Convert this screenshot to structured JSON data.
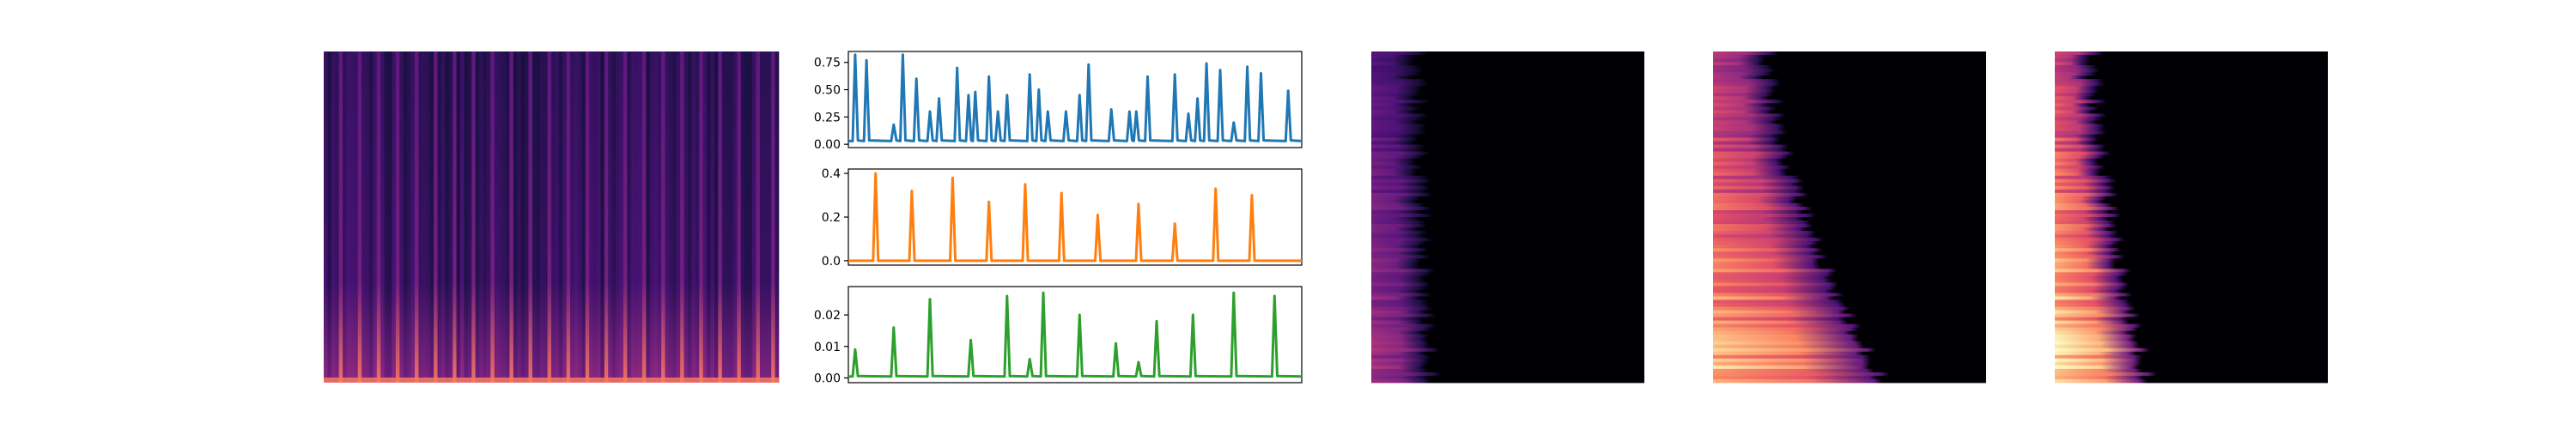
{
  "figure": {
    "colors": {
      "spectrogram_bg": "#1a0a2e",
      "spectrogram_stripe": "#8a3a9a",
      "spectrogram_low": "#f2a24b",
      "panel_black": "#000004",
      "series1": "#1f77b4",
      "series2": "#ff7f0e",
      "series3": "#2ca02c"
    }
  },
  "chart_data": [
    {
      "type": "heatmap",
      "name": "main-spectrogram",
      "colormap": "magma",
      "time_frames": 120,
      "stripe_columns": [
        4,
        9,
        14,
        19,
        24,
        29,
        34,
        39,
        44,
        49,
        54,
        59,
        64,
        69,
        74,
        79,
        84,
        89,
        94,
        99,
        104,
        109,
        114,
        118
      ],
      "axes": false
    },
    {
      "type": "line",
      "name": "onset-strength-1",
      "color": "#1f77b4",
      "x_range": [
        0,
        100
      ],
      "ylim": [
        -0.03,
        0.85
      ],
      "yticks": [
        "0.00",
        "0.25",
        "0.50",
        "0.75"
      ],
      "ytick_values": [
        0.0,
        0.25,
        0.5,
        0.75
      ],
      "baseline": 0.03,
      "peaks": [
        {
          "x": 1.5,
          "y": 0.82
        },
        {
          "x": 4,
          "y": 0.77
        },
        {
          "x": 10,
          "y": 0.18
        },
        {
          "x": 12,
          "y": 0.82
        },
        {
          "x": 15,
          "y": 0.6
        },
        {
          "x": 18,
          "y": 0.3
        },
        {
          "x": 20,
          "y": 0.42
        },
        {
          "x": 24,
          "y": 0.7
        },
        {
          "x": 26.5,
          "y": 0.45
        },
        {
          "x": 28,
          "y": 0.48
        },
        {
          "x": 31,
          "y": 0.62
        },
        {
          "x": 33,
          "y": 0.3
        },
        {
          "x": 35,
          "y": 0.45
        },
        {
          "x": 40,
          "y": 0.64
        },
        {
          "x": 42,
          "y": 0.5
        },
        {
          "x": 44,
          "y": 0.3
        },
        {
          "x": 48,
          "y": 0.3
        },
        {
          "x": 51,
          "y": 0.45
        },
        {
          "x": 53,
          "y": 0.73
        },
        {
          "x": 58,
          "y": 0.32
        },
        {
          "x": 62,
          "y": 0.3
        },
        {
          "x": 63.5,
          "y": 0.3
        },
        {
          "x": 66,
          "y": 0.62
        },
        {
          "x": 72,
          "y": 0.64
        },
        {
          "x": 75,
          "y": 0.28
        },
        {
          "x": 77,
          "y": 0.42
        },
        {
          "x": 79,
          "y": 0.74
        },
        {
          "x": 82,
          "y": 0.68
        },
        {
          "x": 85,
          "y": 0.2
        },
        {
          "x": 88,
          "y": 0.71
        },
        {
          "x": 91,
          "y": 0.65
        },
        {
          "x": 97,
          "y": 0.49
        }
      ]
    },
    {
      "type": "line",
      "name": "onset-strength-2",
      "color": "#ff7f0e",
      "x_range": [
        0,
        100
      ],
      "ylim": [
        -0.02,
        0.42
      ],
      "yticks": [
        "0.0",
        "0.2",
        "0.4"
      ],
      "ytick_values": [
        0.0,
        0.2,
        0.4
      ],
      "baseline": 0.0,
      "peaks": [
        {
          "x": 6,
          "y": 0.4
        },
        {
          "x": 14,
          "y": 0.32
        },
        {
          "x": 23,
          "y": 0.38
        },
        {
          "x": 31,
          "y": 0.27
        },
        {
          "x": 39,
          "y": 0.35
        },
        {
          "x": 47,
          "y": 0.31
        },
        {
          "x": 55,
          "y": 0.21
        },
        {
          "x": 64,
          "y": 0.26
        },
        {
          "x": 72,
          "y": 0.17
        },
        {
          "x": 81,
          "y": 0.33
        },
        {
          "x": 89,
          "y": 0.3
        }
      ]
    },
    {
      "type": "line",
      "name": "onset-strength-3",
      "color": "#2ca02c",
      "x_range": [
        0,
        100
      ],
      "ylim": [
        -0.0015,
        0.029
      ],
      "yticks": [
        "0.00",
        "0.01",
        "0.02"
      ],
      "ytick_values": [
        0.0,
        0.01,
        0.02
      ],
      "baseline": 0.0005,
      "peaks": [
        {
          "x": 1.5,
          "y": 0.009
        },
        {
          "x": 10,
          "y": 0.016
        },
        {
          "x": 18,
          "y": 0.025
        },
        {
          "x": 27,
          "y": 0.012
        },
        {
          "x": 35,
          "y": 0.026
        },
        {
          "x": 40,
          "y": 0.006
        },
        {
          "x": 43,
          "y": 0.027
        },
        {
          "x": 51,
          "y": 0.02
        },
        {
          "x": 59,
          "y": 0.011
        },
        {
          "x": 64,
          "y": 0.005
        },
        {
          "x": 68,
          "y": 0.018
        },
        {
          "x": 76,
          "y": 0.02
        },
        {
          "x": 85,
          "y": 0.027
        },
        {
          "x": 94,
          "y": 0.026
        }
      ]
    },
    {
      "type": "heatmap",
      "name": "profile-heatmap-1",
      "colormap": "magma",
      "rows": 96,
      "max_intensity": 0.45,
      "edge_start": 0.15,
      "edge_growth": 0.05,
      "axes": false
    },
    {
      "type": "heatmap",
      "name": "profile-heatmap-2",
      "colormap": "magma",
      "rows": 96,
      "max_intensity": 0.85,
      "edge_start": 0.18,
      "edge_growth": 0.42,
      "axes": false
    },
    {
      "type": "heatmap",
      "name": "profile-heatmap-3",
      "colormap": "magma",
      "rows": 96,
      "max_intensity": 0.95,
      "edge_start": 0.12,
      "edge_growth": 0.2,
      "axes": false
    }
  ]
}
